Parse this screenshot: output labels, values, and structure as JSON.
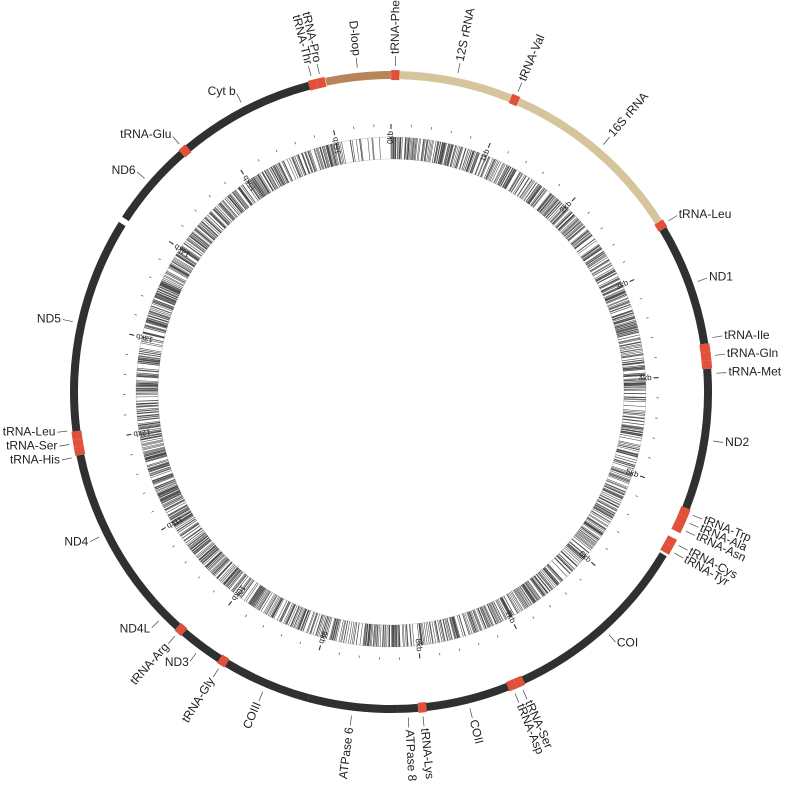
{
  "genome": {
    "total_length": 16569
  },
  "colors": {
    "protein": "#2f3130",
    "rrna": "#d6c59c",
    "dloop": "#b8855a",
    "trna": "#e0503a",
    "text": "#222222",
    "density": "#1a1a1a"
  },
  "features": [
    {
      "name": "D-loop",
      "type": "dloop",
      "start": 16024,
      "end": 16569
    },
    {
      "name": "tRNA-Phe",
      "type": "trna",
      "start": 1,
      "end": 70
    },
    {
      "name": "12S rRNA",
      "type": "rrna",
      "start": 70,
      "end": 1020
    },
    {
      "name": "tRNA-Val",
      "type": "trna",
      "start": 1020,
      "end": 1090
    },
    {
      "name": "16S rRNA",
      "type": "rrna",
      "start": 1090,
      "end": 2650
    },
    {
      "name": "tRNA-Leu",
      "type": "trna",
      "start": 2650,
      "end": 2720
    },
    {
      "name": "ND1",
      "type": "protein",
      "start": 2720,
      "end": 3740
    },
    {
      "name": "tRNA-Ile",
      "type": "trna",
      "start": 3740,
      "end": 3810
    },
    {
      "name": "tRNA-Gln",
      "type": "trna",
      "start": 3810,
      "end": 3880
    },
    {
      "name": "tRNA-Met",
      "type": "trna",
      "start": 3880,
      "end": 3950
    },
    {
      "name": "ND2",
      "type": "protein",
      "start": 3950,
      "end": 5130
    },
    {
      "name": "tRNA-Trp",
      "type": "trna",
      "start": 5130,
      "end": 5200
    },
    {
      "name": "tRNA-Ala",
      "type": "trna",
      "start": 5200,
      "end": 5270
    },
    {
      "name": "tRNA-Asn",
      "type": "trna",
      "start": 5270,
      "end": 5340
    },
    {
      "name": "tRNA-Cys",
      "type": "trna",
      "start": 5400,
      "end": 5470
    },
    {
      "name": "tRNA-Tyr",
      "type": "trna",
      "start": 5470,
      "end": 5540
    },
    {
      "name": "COI",
      "type": "protein",
      "start": 5560,
      "end": 7150
    },
    {
      "name": "tRNA-Ser",
      "type": "trna",
      "start": 7150,
      "end": 7220
    },
    {
      "name": "tRNA-Asp",
      "type": "trna",
      "start": 7220,
      "end": 7290
    },
    {
      "name": "COII",
      "type": "protein",
      "start": 7290,
      "end": 7990
    },
    {
      "name": "tRNA-Lys",
      "type": "trna",
      "start": 7990,
      "end": 8060
    },
    {
      "name": "ATPase 8",
      "type": "protein",
      "start": 8060,
      "end": 8230
    },
    {
      "name": "ATPase 6",
      "type": "protein",
      "start": 8230,
      "end": 8980
    },
    {
      "name": "COIII",
      "type": "protein",
      "start": 8980,
      "end": 9720
    },
    {
      "name": "tRNA-Gly",
      "type": "trna",
      "start": 9720,
      "end": 9790
    },
    {
      "name": "ND3",
      "type": "protein",
      "start": 9790,
      "end": 10160
    },
    {
      "name": "tRNA-Arg",
      "type": "trna",
      "start": 10160,
      "end": 10230
    },
    {
      "name": "ND4L",
      "type": "protein",
      "start": 10230,
      "end": 10520
    },
    {
      "name": "ND4",
      "type": "protein",
      "start": 10520,
      "end": 11900
    },
    {
      "name": "tRNA-His",
      "type": "trna",
      "start": 11900,
      "end": 11970
    },
    {
      "name": "tRNA-Ser",
      "type": "trna",
      "start": 11970,
      "end": 12030
    },
    {
      "name": "tRNA-Leu",
      "type": "trna",
      "start": 12030,
      "end": 12100
    },
    {
      "name": "ND5",
      "type": "protein",
      "start": 12100,
      "end": 13900
    },
    {
      "name": "ND6",
      "type": "protein",
      "start": 13950,
      "end": 14670
    },
    {
      "name": "tRNA-Glu",
      "type": "trna",
      "start": 14670,
      "end": 14740
    },
    {
      "name": "Cyt b",
      "type": "protein",
      "start": 14740,
      "end": 15880
    },
    {
      "name": "tRNA-Thr",
      "type": "trna",
      "start": 15880,
      "end": 15950
    },
    {
      "name": "tRNA-Pro",
      "type": "trna",
      "start": 15950,
      "end": 16020
    }
  ],
  "labels": [
    {
      "text": "tRNA-Phe",
      "pos": 35,
      "orient": "radial"
    },
    {
      "text": "12S rRNA",
      "pos": 545,
      "orient": "radial"
    },
    {
      "text": "tRNA-Val",
      "pos": 1055,
      "orient": "radial"
    },
    {
      "text": "16S rRNA",
      "pos": 1870,
      "orient": "radial"
    },
    {
      "text": "tRNA-Leu",
      "pos": 2685,
      "orient": "horizontal"
    },
    {
      "text": "ND1",
      "pos": 3230,
      "orient": "horizontal"
    },
    {
      "text": "tRNA-Ile",
      "pos": 3700,
      "orient": "horizontal"
    },
    {
      "text": "tRNA-Gln",
      "pos": 3845,
      "orient": "horizontal"
    },
    {
      "text": "tRNA-Met",
      "pos": 3990,
      "orient": "horizontal"
    },
    {
      "text": "ND2",
      "pos": 4540,
      "orient": "horizontal"
    },
    {
      "text": "tRNA-Trp",
      "pos": 5165,
      "orient": "radial"
    },
    {
      "text": "tRNA-Ala",
      "pos": 5235,
      "orient": "radial"
    },
    {
      "text": "tRNA-Asn",
      "pos": 5305,
      "orient": "radial"
    },
    {
      "text": "tRNA-Cys",
      "pos": 5435,
      "orient": "radial"
    },
    {
      "text": "tRNA-Tyr",
      "pos": 5505,
      "orient": "radial"
    },
    {
      "text": "COI",
      "pos": 6355,
      "orient": "horizontal"
    },
    {
      "text": "tRNA-Ser",
      "pos": 7185,
      "orient": "radial"
    },
    {
      "text": "tRNA-Asp",
      "pos": 7255,
      "orient": "radial"
    },
    {
      "text": "COII",
      "pos": 7640,
      "orient": "radial"
    },
    {
      "text": "tRNA-Lys",
      "pos": 8025,
      "orient": "radial"
    },
    {
      "text": "ATPase 8",
      "pos": 8145,
      "orient": "radial"
    },
    {
      "text": "ATPase 6",
      "pos": 8605,
      "orient": "radial"
    },
    {
      "text": "COIII",
      "pos": 9350,
      "orient": "radial"
    },
    {
      "text": "tRNA-Gly",
      "pos": 9755,
      "orient": "radial"
    },
    {
      "text": "ND3",
      "pos": 9975,
      "orient": "horizontal"
    },
    {
      "text": "tRNA-Arg",
      "pos": 10195,
      "orient": "radial"
    },
    {
      "text": "ND4L",
      "pos": 10375,
      "orient": "horizontal"
    },
    {
      "text": "ND4",
      "pos": 11210,
      "orient": "horizontal"
    },
    {
      "text": "tRNA-His",
      "pos": 11890,
      "orient": "horizontal"
    },
    {
      "text": "tRNA-Ser",
      "pos": 12000,
      "orient": "horizontal"
    },
    {
      "text": "tRNA-Leu",
      "pos": 12110,
      "orient": "horizontal"
    },
    {
      "text": "ND5",
      "pos": 13000,
      "orient": "horizontal"
    },
    {
      "text": "ND6",
      "pos": 14310,
      "orient": "horizontal"
    },
    {
      "text": "tRNA-Glu",
      "pos": 14705,
      "orient": "horizontal"
    },
    {
      "text": "Cyt b",
      "pos": 15310,
      "orient": "horizontal"
    },
    {
      "text": "tRNA-Thr",
      "pos": 15915,
      "orient": "radial"
    },
    {
      "text": "tRNA-Pro",
      "pos": 15985,
      "orient": "radial"
    },
    {
      "text": "D-loop",
      "pos": 16296,
      "orient": "radial"
    }
  ],
  "ticks": {
    "minor_step": 200,
    "major_step": 1000,
    "labels": [
      "0kb",
      "1kb",
      "2kb",
      "3kb",
      "4kb",
      "5kb",
      "6kb",
      "7kb",
      "8kb",
      "9kb",
      "10kb",
      "11kb",
      "12kb",
      "13kb",
      "14kb",
      "15kb",
      "16kb"
    ]
  }
}
